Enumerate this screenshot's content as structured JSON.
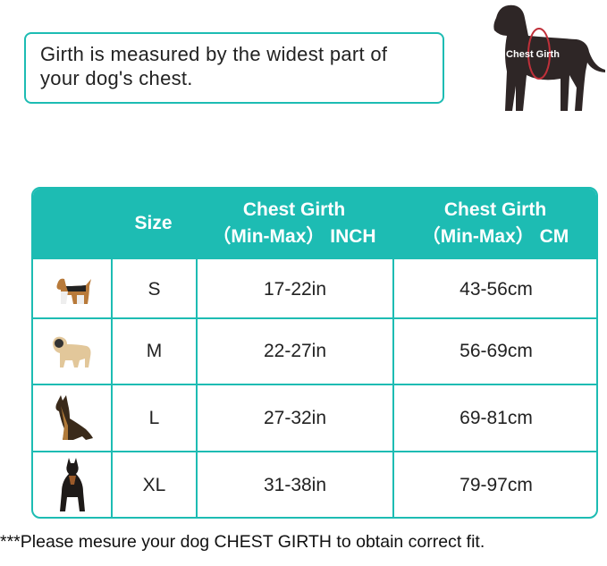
{
  "note": "Girth is measured by the widest part of your dog's chest.",
  "hero_label": "Chest Girth",
  "table": {
    "headers": {
      "size": "Size",
      "inch_line1": "Chest Girth",
      "inch_line2": "（Min-Max） INCH",
      "cm_line1": "Chest Girth",
      "cm_line2": "（Min-Max） CM"
    },
    "rows": [
      {
        "icon": "beagle-icon",
        "size": "S",
        "inch": "17-22in",
        "cm": "43-56cm"
      },
      {
        "icon": "pug-icon",
        "size": "M",
        "inch": "22-27in",
        "cm": "56-69cm"
      },
      {
        "icon": "german-shepherd-icon",
        "size": "L",
        "inch": "27-32in",
        "cm": "69-81cm"
      },
      {
        "icon": "doberman-icon",
        "size": "XL",
        "inch": "31-38in",
        "cm": "79-97cm"
      }
    ]
  },
  "footer": "***Please mesure your dog CHEST GIRTH to obtain correct fit.",
  "colors": {
    "accent": "#1dbcb3",
    "dog": "#2e2626",
    "girth_ring": "#c0303a"
  }
}
